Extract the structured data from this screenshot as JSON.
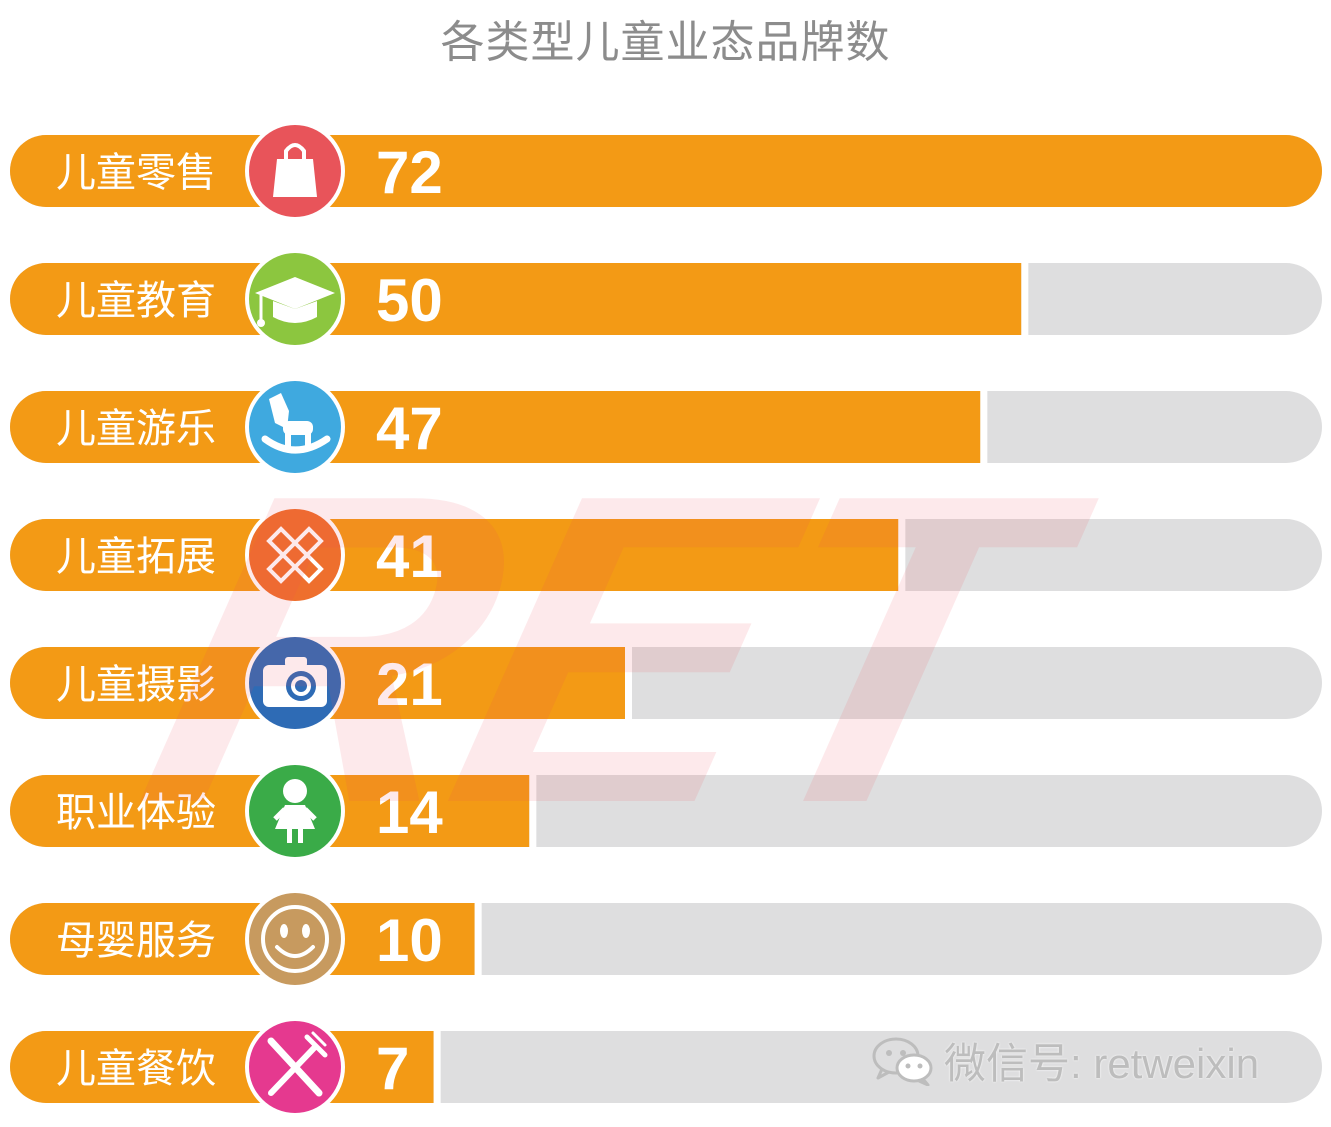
{
  "title": "各类型儿童业态品牌数",
  "watermark_text": "RET",
  "wechat": {
    "icon": "wechat-icon",
    "label": "微信号: retweixin"
  },
  "colors": {
    "bar_fill": "#f39a15",
    "bar_track": "#dededf",
    "title": "#8c8c8c"
  },
  "chart_data": {
    "type": "bar",
    "orientation": "horizontal",
    "title": "各类型儿童业态品牌数",
    "categories": [
      "儿童零售",
      "儿童教育",
      "儿童游乐",
      "儿童拓展",
      "儿童摄影",
      "职业体验",
      "母婴服务",
      "儿童餐饮"
    ],
    "values": [
      72,
      50,
      47,
      41,
      21,
      14,
      10,
      7
    ],
    "xlim": [
      0,
      72
    ],
    "grid": false,
    "icons": [
      {
        "name": "shopping-bag-icon",
        "color": "#e8545a"
      },
      {
        "name": "graduation-cap-icon",
        "color": "#8cc63f"
      },
      {
        "name": "rocking-horse-icon",
        "color": "#3fa9df"
      },
      {
        "name": "puzzle-cross-icon",
        "color": "#ee6f2d"
      },
      {
        "name": "camera-icon",
        "color": "#2e6bb5"
      },
      {
        "name": "child-icon",
        "color": "#3aab48"
      },
      {
        "name": "smiley-icon",
        "color": "#c79a5f"
      },
      {
        "name": "fork-knife-icon",
        "color": "#e5398f"
      }
    ]
  }
}
